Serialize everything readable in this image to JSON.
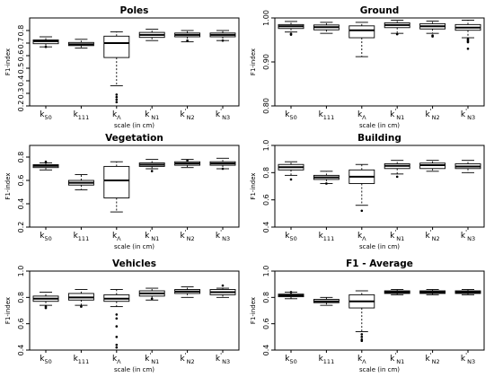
{
  "chart_data": [
    {
      "type": "boxplot",
      "title": "Poles",
      "xlabel": "scale (in cm)",
      "ylabel": "F1-index",
      "ylim": [
        0.2,
        0.9
      ],
      "yticks": [
        "0.2",
        "0.3",
        "0.4",
        "0.5",
        "0.6",
        "0.7",
        "0.8"
      ],
      "categories": [
        {
          "base": "k",
          "sub": "50",
          "sup": ""
        },
        {
          "base": "k",
          "sub": "111",
          "sup": ""
        },
        {
          "base": "k",
          "sub": "Λ",
          "sup": ""
        },
        {
          "base": "k",
          "sub": "N1",
          "sup": "'"
        },
        {
          "base": "k",
          "sub": "N2",
          "sup": "'"
        },
        {
          "base": "k",
          "sub": "N3",
          "sup": "'"
        }
      ],
      "boxes": [
        {
          "whislo": 0.67,
          "q1": 0.695,
          "med": 0.715,
          "q3": 0.725,
          "whishi": 0.75,
          "fliers": [
            0.67
          ]
        },
        {
          "whislo": 0.66,
          "q1": 0.68,
          "med": 0.69,
          "q3": 0.705,
          "whishi": 0.73,
          "fliers": []
        },
        {
          "whislo": 0.36,
          "q1": 0.585,
          "med": 0.7,
          "q3": 0.755,
          "whishi": 0.79,
          "fliers": [
            0.23,
            0.25,
            0.27,
            0.29
          ]
        },
        {
          "whislo": 0.72,
          "q1": 0.745,
          "med": 0.765,
          "q3": 0.785,
          "whishi": 0.81,
          "fliers": []
        },
        {
          "whislo": 0.71,
          "q1": 0.75,
          "med": 0.765,
          "q3": 0.78,
          "whishi": 0.8,
          "fliers": [
            0.72
          ]
        },
        {
          "whislo": 0.72,
          "q1": 0.75,
          "med": 0.765,
          "q3": 0.78,
          "whishi": 0.8,
          "fliers": [
            0.72
          ]
        }
      ]
    },
    {
      "type": "boxplot",
      "title": "Ground",
      "xlabel": "scale (in cm)",
      "ylabel": "F1-index",
      "ylim": [
        0.8,
        1.0
      ],
      "yticks": [
        "0.80",
        "0.90",
        "1.00"
      ],
      "categories": [
        {
          "base": "k",
          "sub": "50",
          "sup": ""
        },
        {
          "base": "k",
          "sub": "111",
          "sup": ""
        },
        {
          "base": "k",
          "sub": "Λ",
          "sup": ""
        },
        {
          "base": "k",
          "sub": "N1",
          "sup": "'"
        },
        {
          "base": "k",
          "sub": "N2",
          "sup": "'"
        },
        {
          "base": "k",
          "sub": "N3",
          "sup": "'"
        }
      ],
      "boxes": [
        {
          "whislo": 0.968,
          "q1": 0.976,
          "med": 0.981,
          "q3": 0.985,
          "whishi": 0.992,
          "fliers": [
            0.962,
            0.964
          ]
        },
        {
          "whislo": 0.965,
          "q1": 0.973,
          "med": 0.979,
          "q3": 0.984,
          "whishi": 0.99,
          "fliers": []
        },
        {
          "whislo": 0.912,
          "q1": 0.955,
          "med": 0.972,
          "q3": 0.982,
          "whishi": 0.99,
          "fliers": []
        },
        {
          "whislo": 0.965,
          "q1": 0.978,
          "med": 0.984,
          "q3": 0.989,
          "whishi": 0.995,
          "fliers": [
            0.963
          ]
        },
        {
          "whislo": 0.965,
          "q1": 0.975,
          "med": 0.981,
          "q3": 0.987,
          "whishi": 0.993,
          "fliers": [
            0.958,
            0.96
          ]
        },
        {
          "whislo": 0.955,
          "q1": 0.972,
          "med": 0.978,
          "q3": 0.985,
          "whishi": 0.995,
          "fliers": [
            0.93,
            0.945,
            0.947,
            0.95,
            0.952
          ]
        }
      ]
    },
    {
      "type": "boxplot",
      "title": "Vegetation",
      "xlabel": "scale (in cm)",
      "ylabel": "F1-index",
      "ylim": [
        0.2,
        0.9
      ],
      "yticks": [
        "0.2",
        "0.4",
        "0.6",
        "0.8"
      ],
      "categories": [
        {
          "base": "k",
          "sub": "50",
          "sup": ""
        },
        {
          "base": "k",
          "sub": "111",
          "sup": ""
        },
        {
          "base": "k",
          "sub": "Λ",
          "sup": ""
        },
        {
          "base": "k",
          "sub": "N1",
          "sup": "'"
        },
        {
          "base": "k",
          "sub": "N2",
          "sup": "'"
        },
        {
          "base": "k",
          "sub": "N3",
          "sup": "'"
        }
      ],
      "boxes": [
        {
          "whislo": 0.69,
          "q1": 0.71,
          "med": 0.725,
          "q3": 0.735,
          "whishi": 0.75,
          "fliers": [
            0.76
          ]
        },
        {
          "whislo": 0.52,
          "q1": 0.56,
          "med": 0.58,
          "q3": 0.6,
          "whishi": 0.65,
          "fliers": []
        },
        {
          "whislo": 0.33,
          "q1": 0.45,
          "med": 0.6,
          "q3": 0.72,
          "whishi": 0.76,
          "fliers": []
        },
        {
          "whislo": 0.7,
          "q1": 0.72,
          "med": 0.735,
          "q3": 0.75,
          "whishi": 0.78,
          "fliers": [
            0.68
          ]
        },
        {
          "whislo": 0.71,
          "q1": 0.73,
          "med": 0.745,
          "q3": 0.76,
          "whishi": 0.78,
          "fliers": [
            0.77
          ]
        },
        {
          "whislo": 0.7,
          "q1": 0.73,
          "med": 0.745,
          "q3": 0.76,
          "whishi": 0.79,
          "fliers": [
            0.7
          ]
        }
      ]
    },
    {
      "type": "boxplot",
      "title": "Building",
      "xlabel": "scale (in cm)",
      "ylabel": "F1-index",
      "ylim": [
        0.4,
        1.0
      ],
      "yticks": [
        "0.4",
        "0.6",
        "0.8",
        "1.0"
      ],
      "categories": [
        {
          "base": "k",
          "sub": "50",
          "sup": ""
        },
        {
          "base": "k",
          "sub": "111",
          "sup": ""
        },
        {
          "base": "k",
          "sub": "Λ",
          "sup": ""
        },
        {
          "base": "k",
          "sub": "N1",
          "sup": "'"
        },
        {
          "base": "k",
          "sub": "N2",
          "sup": "'"
        },
        {
          "base": "k",
          "sub": "N3",
          "sup": "'"
        }
      ],
      "boxes": [
        {
          "whislo": 0.78,
          "q1": 0.82,
          "med": 0.84,
          "q3": 0.86,
          "whishi": 0.88,
          "fliers": [
            0.75
          ]
        },
        {
          "whislo": 0.72,
          "q1": 0.75,
          "med": 0.765,
          "q3": 0.78,
          "whishi": 0.81,
          "fliers": [
            0.72
          ]
        },
        {
          "whislo": 0.56,
          "q1": 0.72,
          "med": 0.77,
          "q3": 0.82,
          "whishi": 0.86,
          "fliers": [
            0.52
          ]
        },
        {
          "whislo": 0.79,
          "q1": 0.83,
          "med": 0.85,
          "q3": 0.865,
          "whishi": 0.89,
          "fliers": [
            0.77
          ]
        },
        {
          "whislo": 0.81,
          "q1": 0.83,
          "med": 0.855,
          "q3": 0.87,
          "whishi": 0.89,
          "fliers": []
        },
        {
          "whislo": 0.8,
          "q1": 0.83,
          "med": 0.845,
          "q3": 0.865,
          "whishi": 0.89,
          "fliers": []
        }
      ]
    },
    {
      "type": "boxplot",
      "title": "Vehicles",
      "xlabel": "scale (in cm)",
      "ylabel": "F1-index",
      "ylim": [
        0.4,
        1.0
      ],
      "yticks": [
        "0.4",
        "0.6",
        "0.8",
        "1.0"
      ],
      "categories": [
        {
          "base": "k",
          "sub": "50",
          "sup": ""
        },
        {
          "base": "k",
          "sub": "111",
          "sup": ""
        },
        {
          "base": "k",
          "sub": "Λ",
          "sup": ""
        },
        {
          "base": "k",
          "sub": "N1",
          "sup": "'"
        },
        {
          "base": "k",
          "sub": "N2",
          "sup": "'"
        },
        {
          "base": "k",
          "sub": "N3",
          "sup": "'"
        }
      ],
      "boxes": [
        {
          "whislo": 0.74,
          "q1": 0.77,
          "med": 0.79,
          "q3": 0.81,
          "whishi": 0.84,
          "fliers": [
            0.72,
            0.73
          ]
        },
        {
          "whislo": 0.74,
          "q1": 0.78,
          "med": 0.8,
          "q3": 0.83,
          "whishi": 0.86,
          "fliers": [
            0.73
          ]
        },
        {
          "whislo": 0.73,
          "q1": 0.77,
          "med": 0.79,
          "q3": 0.82,
          "whishi": 0.86,
          "fliers": [
            0.42,
            0.44,
            0.5,
            0.58,
            0.64,
            0.67
          ]
        },
        {
          "whislo": 0.78,
          "q1": 0.81,
          "med": 0.83,
          "q3": 0.85,
          "whishi": 0.87,
          "fliers": [
            0.79
          ]
        },
        {
          "whislo": 0.8,
          "q1": 0.83,
          "med": 0.845,
          "q3": 0.86,
          "whishi": 0.88,
          "fliers": []
        },
        {
          "whislo": 0.8,
          "q1": 0.82,
          "med": 0.84,
          "q3": 0.86,
          "whishi": 0.87,
          "fliers": [
            0.89
          ]
        }
      ]
    },
    {
      "type": "boxplot",
      "title": "F1 - Average",
      "xlabel": "scale (in cm)",
      "ylabel": "F1-index",
      "ylim": [
        0.4,
        1.0
      ],
      "yticks": [
        "0.4",
        "0.6",
        "0.8",
        "1.0"
      ],
      "categories": [
        {
          "base": "k",
          "sub": "50",
          "sup": ""
        },
        {
          "base": "k",
          "sub": "111",
          "sup": ""
        },
        {
          "base": "k",
          "sub": "Λ",
          "sup": ""
        },
        {
          "base": "k",
          "sub": "N1",
          "sup": "'"
        },
        {
          "base": "k",
          "sub": "N2",
          "sup": "'"
        },
        {
          "base": "k",
          "sub": "N3",
          "sup": "'"
        }
      ],
      "boxes": [
        {
          "whislo": 0.79,
          "q1": 0.805,
          "med": 0.815,
          "q3": 0.825,
          "whishi": 0.84,
          "fliers": [
            0.84
          ]
        },
        {
          "whislo": 0.74,
          "q1": 0.76,
          "med": 0.77,
          "q3": 0.785,
          "whishi": 0.8,
          "fliers": []
        },
        {
          "whislo": 0.54,
          "q1": 0.72,
          "med": 0.77,
          "q3": 0.82,
          "whishi": 0.85,
          "fliers": [
            0.47,
            0.48,
            0.5,
            0.52
          ]
        },
        {
          "whislo": 0.82,
          "q1": 0.83,
          "med": 0.84,
          "q3": 0.85,
          "whishi": 0.86,
          "fliers": []
        },
        {
          "whislo": 0.82,
          "q1": 0.83,
          "med": 0.84,
          "q3": 0.85,
          "whishi": 0.86,
          "fliers": []
        },
        {
          "whislo": 0.82,
          "q1": 0.83,
          "med": 0.84,
          "q3": 0.85,
          "whishi": 0.86,
          "fliers": []
        }
      ]
    }
  ]
}
